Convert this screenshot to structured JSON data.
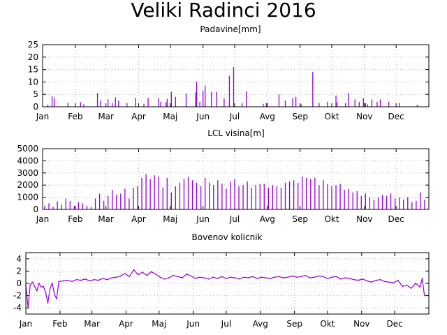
{
  "title": "Veliki Radinci 2016",
  "colors": {
    "series": "#9400d3",
    "grid": "#b0b0b0",
    "axis": "#000000"
  },
  "chart_data": [
    {
      "type": "bar",
      "title": "Padavine[mm]",
      "xlabel": "",
      "ylabel": "",
      "grid": true,
      "xlim": [
        0,
        366
      ],
      "ylim": [
        0,
        25
      ],
      "yticks": [
        0,
        5,
        10,
        15,
        20,
        25
      ],
      "months": [
        {
          "label": "Jan",
          "day": 0
        },
        {
          "label": "Feb",
          "day": 31
        },
        {
          "label": "Mar",
          "day": 60
        },
        {
          "label": "Apr",
          "day": 91
        },
        {
          "label": "Maj",
          "day": 121
        },
        {
          "label": "Jun",
          "day": 152
        },
        {
          "label": "Jul",
          "day": 182
        },
        {
          "label": "Avg",
          "day": 213
        },
        {
          "label": "Sep",
          "day": 244
        },
        {
          "label": "Okt",
          "day": 274
        },
        {
          "label": "Nov",
          "day": 305
        },
        {
          "label": "Dec",
          "day": 335
        }
      ],
      "x": [
        5,
        9,
        11,
        24,
        36,
        39,
        52,
        55,
        62,
        66,
        69,
        72,
        80,
        88,
        96,
        100,
        110,
        112,
        117,
        118,
        122,
        126,
        136,
        145,
        146,
        149,
        152,
        154,
        160,
        165,
        172,
        177,
        181,
        189,
        193,
        209,
        212,
        224,
        230,
        237,
        240,
        245,
        256,
        262,
        270,
        278,
        279,
        287,
        290,
        296,
        300,
        304,
        306,
        308,
        312,
        317,
        320,
        328,
        338,
        355
      ],
      "values": [
        0.8,
        4.2,
        3.5,
        1.5,
        1.8,
        1.0,
        5.5,
        2.5,
        3.0,
        1.5,
        3.8,
        2.5,
        1.5,
        3.5,
        1.2,
        3.5,
        3.5,
        2.0,
        1.8,
        3.2,
        6.0,
        4.0,
        5.3,
        5.8,
        10.0,
        2.0,
        6.5,
        8.5,
        6.0,
        6.0,
        3.5,
        12.5,
        16.0,
        1.5,
        6.2,
        1.2,
        1.5,
        5.0,
        2.5,
        3.5,
        4.0,
        1.0,
        14.0,
        1.5,
        2.0,
        4.5,
        1.8,
        1.5,
        5.5,
        3.0,
        2.0,
        3.5,
        1.5,
        1.0,
        3.0,
        2.0,
        3.0,
        2.0,
        1.5,
        0.8
      ]
    },
    {
      "type": "bar",
      "title": "LCL visina[m]",
      "xlabel": "",
      "ylabel": "",
      "grid": true,
      "xlim": [
        0,
        366
      ],
      "ylim": [
        0,
        5000
      ],
      "yticks": [
        0,
        1000,
        2000,
        3000,
        4000,
        5000
      ],
      "months": [
        {
          "label": "Jan",
          "day": 0
        },
        {
          "label": "Feb",
          "day": 31
        },
        {
          "label": "Mar",
          "day": 60
        },
        {
          "label": "Apr",
          "day": 91
        },
        {
          "label": "Maj",
          "day": 121
        },
        {
          "label": "Jun",
          "day": 152
        },
        {
          "label": "Jul",
          "day": 182
        },
        {
          "label": "Avg",
          "day": 213
        },
        {
          "label": "Sep",
          "day": 244
        },
        {
          "label": "Okt",
          "day": 274
        },
        {
          "label": "Nov",
          "day": 305
        },
        {
          "label": "Dec",
          "day": 335
        }
      ],
      "x": [
        2,
        6,
        10,
        14,
        18,
        22,
        26,
        30,
        34,
        38,
        42,
        46,
        50,
        54,
        58,
        62,
        66,
        70,
        74,
        78,
        82,
        86,
        90,
        94,
        98,
        102,
        106,
        110,
        114,
        118,
        122,
        126,
        130,
        134,
        138,
        142,
        146,
        150,
        154,
        158,
        162,
        166,
        170,
        174,
        178,
        182,
        186,
        190,
        194,
        198,
        202,
        206,
        210,
        214,
        218,
        222,
        226,
        230,
        234,
        238,
        242,
        246,
        250,
        254,
        258,
        262,
        266,
        270,
        274,
        278,
        282,
        286,
        290,
        294,
        298,
        302,
        306,
        310,
        314,
        318,
        322,
        326,
        330,
        334,
        338,
        342,
        346,
        350,
        354,
        358,
        362
      ],
      "values": [
        300,
        500,
        200,
        650,
        400,
        900,
        700,
        300,
        600,
        500,
        300,
        200,
        900,
        1300,
        700,
        1100,
        1600,
        1200,
        1300,
        1700,
        900,
        1800,
        1900,
        2600,
        2900,
        2500,
        2800,
        2700,
        1800,
        2600,
        1400,
        1900,
        2200,
        2500,
        2700,
        2400,
        2200,
        1900,
        2600,
        2200,
        2000,
        2400,
        2100,
        1700,
        2300,
        2500,
        1900,
        2000,
        2300,
        1800,
        2000,
        2100,
        2100,
        1800,
        2000,
        1900,
        1800,
        2200,
        2300,
        2400,
        2200,
        2700,
        2600,
        2500,
        2600,
        2000,
        2400,
        2100,
        1900,
        2000,
        2100,
        1600,
        1700,
        1400,
        1500,
        1100,
        1300,
        1000,
        800,
        1000,
        1200,
        1100,
        1300,
        900,
        1000,
        800,
        1000,
        600,
        700,
        1400,
        800
      ]
    },
    {
      "type": "line",
      "title": "Bovenov kolicnik",
      "xlabel": "",
      "ylabel": "",
      "grid": true,
      "xlim": [
        0,
        366
      ],
      "ylim": [
        -5,
        5
      ],
      "yticks": [
        -4,
        -2,
        0,
        2,
        4
      ],
      "months": [
        {
          "label": "Jan",
          "day": 0
        },
        {
          "label": "Feb",
          "day": 31
        },
        {
          "label": "Mar",
          "day": 60
        },
        {
          "label": "Apr",
          "day": 91
        },
        {
          "label": "Maj",
          "day": 121
        },
        {
          "label": "Jun",
          "day": 152
        },
        {
          "label": "Jul",
          "day": 182
        },
        {
          "label": "Avg",
          "day": 213
        },
        {
          "label": "Sep",
          "day": 244
        },
        {
          "label": "Okt",
          "day": 274
        },
        {
          "label": "Nov",
          "day": 305
        },
        {
          "label": "Dec",
          "day": 335
        }
      ],
      "x": [
        0,
        2,
        4,
        6,
        8,
        10,
        12,
        14,
        16,
        18,
        20,
        22,
        24,
        26,
        28,
        30,
        34,
        38,
        42,
        46,
        50,
        54,
        58,
        62,
        66,
        70,
        74,
        78,
        82,
        86,
        90,
        94,
        98,
        102,
        106,
        110,
        114,
        118,
        122,
        126,
        130,
        134,
        138,
        142,
        146,
        150,
        154,
        158,
        162,
        166,
        170,
        174,
        178,
        182,
        186,
        190,
        194,
        198,
        202,
        206,
        210,
        214,
        218,
        222,
        226,
        230,
        234,
        238,
        242,
        246,
        250,
        254,
        258,
        262,
        266,
        270,
        274,
        278,
        282,
        286,
        290,
        294,
        298,
        302,
        306,
        310,
        314,
        318,
        322,
        326,
        330,
        334,
        338,
        342,
        346,
        350,
        354,
        358,
        360,
        362
      ],
      "values": [
        -0.3,
        -4.0,
        -0.2,
        0.2,
        -0.5,
        -1.2,
        0.0,
        -0.6,
        -0.5,
        -1.5,
        -3.2,
        -0.8,
        0.0,
        -1.8,
        -2.5,
        0.3,
        0.4,
        0.5,
        0.3,
        0.6,
        0.5,
        0.7,
        0.4,
        0.6,
        0.5,
        0.8,
        0.6,
        0.9,
        1.0,
        1.2,
        1.6,
        1.1,
        2.2,
        1.4,
        1.8,
        1.3,
        1.9,
        1.5,
        1.0,
        0.7,
        0.9,
        1.3,
        1.1,
        0.9,
        1.5,
        1.2,
        0.8,
        1.0,
        0.9,
        0.7,
        1.0,
        0.8,
        1.1,
        0.8,
        1.0,
        0.9,
        0.7,
        1.0,
        0.9,
        1.1,
        0.8,
        1.0,
        0.9,
        0.8,
        1.0,
        1.1,
        0.9,
        1.0,
        1.2,
        1.0,
        1.1,
        1.3,
        0.9,
        1.0,
        1.2,
        1.1,
        0.8,
        1.0,
        1.1,
        0.7,
        0.9,
        0.8,
        0.6,
        0.5,
        0.7,
        0.4,
        0.2,
        0.5,
        0.6,
        0.3,
        0.2,
        0.1,
        0.5,
        -0.5,
        -0.3,
        -0.8,
        0.0,
        -0.6,
        0.8,
        -2.0
      ]
    }
  ]
}
